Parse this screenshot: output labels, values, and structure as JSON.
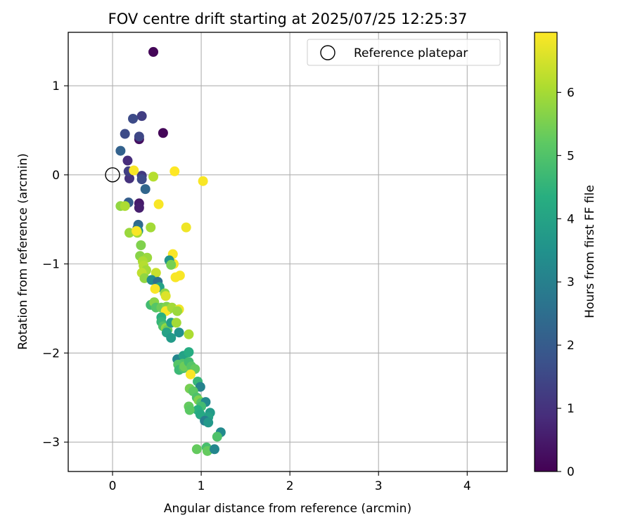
{
  "chart_data": {
    "type": "scatter",
    "title": "FOV centre drift starting at 2025/07/25 12:25:37",
    "xlabel": "Angular distance from reference (arcmin)",
    "ylabel": "Rotation from reference (arcmin)",
    "xlim": [
      -0.5,
      4.45
    ],
    "ylim": [
      -3.33,
      1.6
    ],
    "xticks": [
      0,
      1,
      2,
      3,
      4
    ],
    "yticks": [
      -3,
      -2,
      -1,
      0,
      1
    ],
    "grid": true,
    "legend": {
      "placement": "top-right",
      "entries": [
        "Reference platepar"
      ]
    },
    "reference_point": {
      "name": "Reference platepar",
      "x": 0,
      "y": 0
    },
    "colorbar": {
      "label": "Hours from first FF file",
      "min": 0,
      "max": 6.95,
      "ticks": [
        0,
        1,
        2,
        3,
        4,
        5,
        6
      ],
      "colormap": "viridis"
    },
    "points": [
      {
        "x": 0.46,
        "y": 1.38,
        "h": 0.1
      },
      {
        "x": 0.57,
        "y": 0.47,
        "h": 0.1
      },
      {
        "x": 0.3,
        "y": 0.4,
        "h": 0.3
      },
      {
        "x": 0.3,
        "y": -0.32,
        "h": 0.5
      },
      {
        "x": 0.3,
        "y": -0.37,
        "h": 0.6
      },
      {
        "x": 0.33,
        "y": 0.66,
        "h": 1.3
      },
      {
        "x": 0.23,
        "y": 0.63,
        "h": 1.6
      },
      {
        "x": 0.14,
        "y": 0.46,
        "h": 1.6
      },
      {
        "x": 0.3,
        "y": 0.43,
        "h": 1.5
      },
      {
        "x": 0.17,
        "y": 0.16,
        "h": 0.9
      },
      {
        "x": 0.19,
        "y": -0.04,
        "h": 1.0
      },
      {
        "x": 0.18,
        "y": 0.04,
        "h": 1.3
      },
      {
        "x": 0.33,
        "y": -0.01,
        "h": 1.2
      },
      {
        "x": 0.33,
        "y": -0.05,
        "h": 1.6
      },
      {
        "x": 0.37,
        "y": -0.16,
        "h": 2.3
      },
      {
        "x": 0.09,
        "y": 0.27,
        "h": 2.2
      },
      {
        "x": 0.18,
        "y": -0.31,
        "h": 2.1
      },
      {
        "x": 0.29,
        "y": -0.56,
        "h": 2.4
      },
      {
        "x": 0.28,
        "y": -0.6,
        "h": 2.6
      },
      {
        "x": 0.29,
        "y": -0.63,
        "h": 3.3
      },
      {
        "x": 0.24,
        "y": 0.05,
        "h": 6.9
      },
      {
        "x": 0.7,
        "y": 0.04,
        "h": 6.95
      },
      {
        "x": 0.46,
        "y": -0.02,
        "h": 6.2
      },
      {
        "x": 1.02,
        "y": -0.07,
        "h": 6.9
      },
      {
        "x": 0.52,
        "y": -0.33,
        "h": 6.9
      },
      {
        "x": 0.09,
        "y": -0.35,
        "h": 5.8
      },
      {
        "x": 0.14,
        "y": -0.35,
        "h": 6.1
      },
      {
        "x": 0.83,
        "y": -0.59,
        "h": 6.8
      },
      {
        "x": 0.43,
        "y": -0.59,
        "h": 6.0
      },
      {
        "x": 0.19,
        "y": -0.65,
        "h": 5.9
      },
      {
        "x": 0.28,
        "y": -0.65,
        "h": 6.0
      },
      {
        "x": 0.27,
        "y": -0.63,
        "h": 6.9
      },
      {
        "x": 0.32,
        "y": -0.79,
        "h": 5.6
      },
      {
        "x": 0.31,
        "y": -0.91,
        "h": 5.7
      },
      {
        "x": 0.39,
        "y": -0.93,
        "h": 5.9
      },
      {
        "x": 0.34,
        "y": -0.97,
        "h": 6.1
      },
      {
        "x": 0.35,
        "y": -1.02,
        "h": 6.2
      },
      {
        "x": 0.38,
        "y": -1.07,
        "h": 6.0
      },
      {
        "x": 0.33,
        "y": -1.1,
        "h": 6.3
      },
      {
        "x": 0.36,
        "y": -1.16,
        "h": 5.8
      },
      {
        "x": 0.49,
        "y": -1.1,
        "h": 6.4
      },
      {
        "x": 0.68,
        "y": -0.89,
        "h": 6.9
      },
      {
        "x": 0.69,
        "y": -1.0,
        "h": 6.9
      },
      {
        "x": 0.64,
        "y": -0.96,
        "h": 3.6
      },
      {
        "x": 0.66,
        "y": -1.01,
        "h": 5.5
      },
      {
        "x": 0.76,
        "y": -1.13,
        "h": 6.9
      },
      {
        "x": 0.71,
        "y": -1.15,
        "h": 6.9
      },
      {
        "x": 0.44,
        "y": -1.18,
        "h": 3.4
      },
      {
        "x": 0.51,
        "y": -1.2,
        "h": 2.6
      },
      {
        "x": 0.53,
        "y": -1.26,
        "h": 4.0
      },
      {
        "x": 0.48,
        "y": -1.28,
        "h": 6.9
      },
      {
        "x": 0.59,
        "y": -1.33,
        "h": 5.8
      },
      {
        "x": 0.6,
        "y": -1.36,
        "h": 6.6
      },
      {
        "x": 0.43,
        "y": -1.46,
        "h": 4.8
      },
      {
        "x": 0.47,
        "y": -1.43,
        "h": 5.7
      },
      {
        "x": 0.49,
        "y": -1.49,
        "h": 5.1
      },
      {
        "x": 0.55,
        "y": -1.49,
        "h": 5.4
      },
      {
        "x": 0.61,
        "y": -1.48,
        "h": 5.6
      },
      {
        "x": 0.63,
        "y": -1.51,
        "h": 5.7
      },
      {
        "x": 0.6,
        "y": -1.53,
        "h": 6.9
      },
      {
        "x": 0.67,
        "y": -1.49,
        "h": 6.0
      },
      {
        "x": 0.75,
        "y": -1.51,
        "h": 6.8
      },
      {
        "x": 0.73,
        "y": -1.53,
        "h": 5.9
      },
      {
        "x": 0.55,
        "y": -1.6,
        "h": 4.4
      },
      {
        "x": 0.55,
        "y": -1.65,
        "h": 4.6
      },
      {
        "x": 0.57,
        "y": -1.7,
        "h": 5.0
      },
      {
        "x": 0.6,
        "y": -1.72,
        "h": 5.8
      },
      {
        "x": 0.62,
        "y": -1.74,
        "h": 5.4
      },
      {
        "x": 0.61,
        "y": -1.77,
        "h": 4.0
      },
      {
        "x": 0.66,
        "y": -1.66,
        "h": 3.9
      },
      {
        "x": 0.72,
        "y": -1.66,
        "h": 6.0
      },
      {
        "x": 0.66,
        "y": -1.83,
        "h": 3.8
      },
      {
        "x": 0.75,
        "y": -1.77,
        "h": 3.5
      },
      {
        "x": 0.86,
        "y": -1.79,
        "h": 6.1
      },
      {
        "x": 0.73,
        "y": -2.07,
        "h": 3.2
      },
      {
        "x": 0.8,
        "y": -2.03,
        "h": 4.0
      },
      {
        "x": 0.86,
        "y": -1.99,
        "h": 4.3
      },
      {
        "x": 0.79,
        "y": -2.12,
        "h": 5.0
      },
      {
        "x": 0.74,
        "y": -2.13,
        "h": 5.1
      },
      {
        "x": 0.75,
        "y": -2.19,
        "h": 4.7
      },
      {
        "x": 0.8,
        "y": -2.17,
        "h": 5.0
      },
      {
        "x": 0.81,
        "y": -2.15,
        "h": 5.4
      },
      {
        "x": 0.86,
        "y": -2.1,
        "h": 4.8
      },
      {
        "x": 0.89,
        "y": -2.15,
        "h": 5.1
      },
      {
        "x": 0.93,
        "y": -2.18,
        "h": 5.3
      },
      {
        "x": 0.88,
        "y": -2.24,
        "h": 6.9
      },
      {
        "x": 0.96,
        "y": -2.32,
        "h": 4.6
      },
      {
        "x": 0.99,
        "y": -2.38,
        "h": 3.1
      },
      {
        "x": 0.87,
        "y": -2.4,
        "h": 5.5
      },
      {
        "x": 0.91,
        "y": -2.43,
        "h": 5.2
      },
      {
        "x": 0.95,
        "y": -2.5,
        "h": 5.0
      },
      {
        "x": 0.97,
        "y": -2.53,
        "h": 5.6
      },
      {
        "x": 1.0,
        "y": -2.56,
        "h": 5.1
      },
      {
        "x": 1.05,
        "y": -2.55,
        "h": 3.3
      },
      {
        "x": 1.0,
        "y": -2.6,
        "h": 4.8
      },
      {
        "x": 0.96,
        "y": -2.64,
        "h": 4.4
      },
      {
        "x": 0.86,
        "y": -2.6,
        "h": 5.3
      },
      {
        "x": 0.87,
        "y": -2.64,
        "h": 5.2
      },
      {
        "x": 0.99,
        "y": -2.69,
        "h": 4.2
      },
      {
        "x": 1.1,
        "y": -2.67,
        "h": 3.8
      },
      {
        "x": 1.08,
        "y": -2.72,
        "h": 4.0
      },
      {
        "x": 1.04,
        "y": -2.76,
        "h": 3.0
      },
      {
        "x": 1.08,
        "y": -2.78,
        "h": 3.7
      },
      {
        "x": 1.22,
        "y": -2.89,
        "h": 3.3
      },
      {
        "x": 1.18,
        "y": -2.94,
        "h": 5.0
      },
      {
        "x": 0.95,
        "y": -3.08,
        "h": 5.3
      },
      {
        "x": 1.06,
        "y": -3.06,
        "h": 4.9
      },
      {
        "x": 1.07,
        "y": -3.1,
        "h": 5.3
      },
      {
        "x": 1.15,
        "y": -3.08,
        "h": 3.2
      }
    ]
  }
}
